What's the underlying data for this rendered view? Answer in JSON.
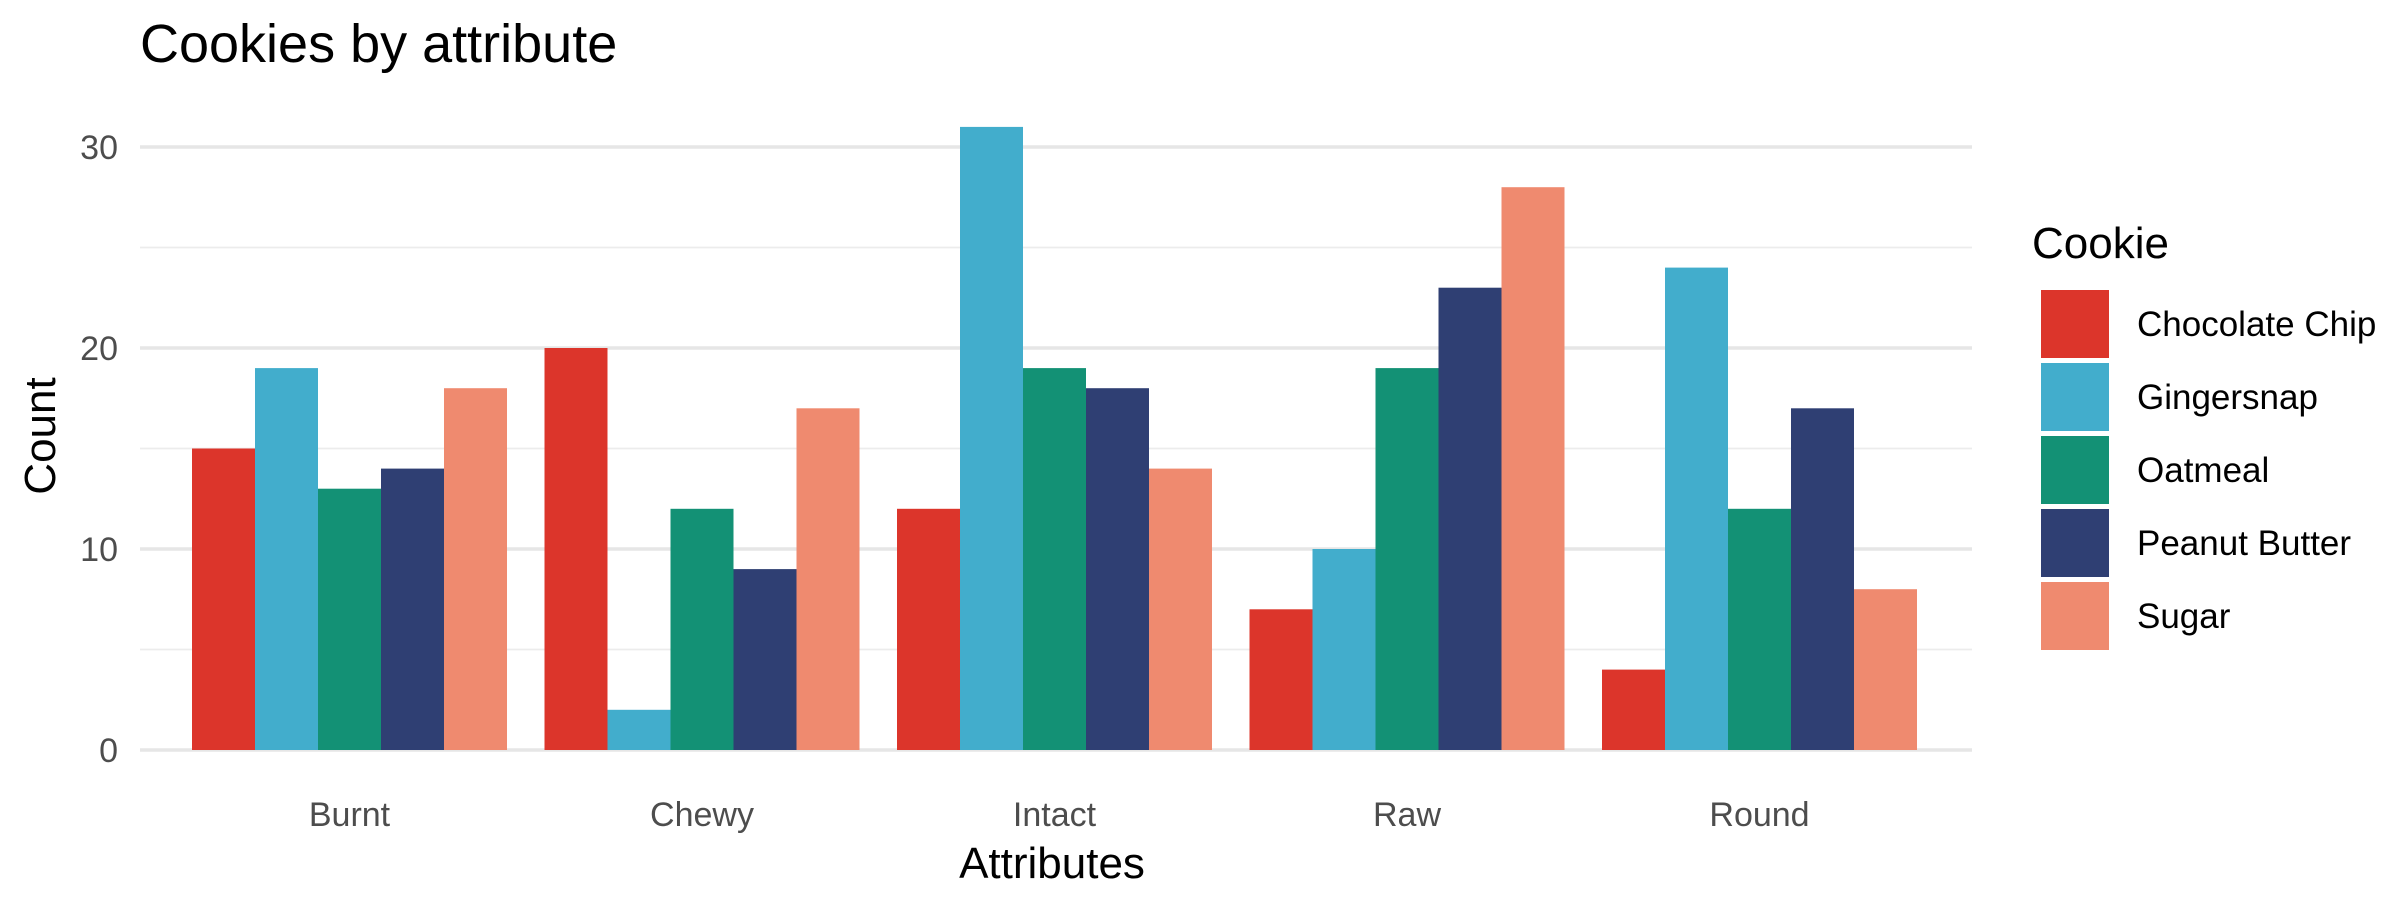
{
  "chart_data": {
    "type": "bar",
    "title": "Cookies by attribute",
    "xlabel": "Attributes",
    "ylabel": "Count",
    "categories": [
      "Burnt",
      "Chewy",
      "Intact",
      "Raw",
      "Round"
    ],
    "series": [
      {
        "name": "Chocolate Chip",
        "color": "#DC352B",
        "values": [
          15,
          20,
          12,
          7,
          4
        ]
      },
      {
        "name": "Gingersnap",
        "color": "#42ADCC",
        "values": [
          19,
          2,
          31,
          10,
          24
        ]
      },
      {
        "name": "Oatmeal",
        "color": "#139175",
        "values": [
          13,
          12,
          19,
          19,
          12
        ]
      },
      {
        "name": "Peanut Butter",
        "color": "#2F3F73",
        "values": [
          14,
          9,
          18,
          23,
          17
        ]
      },
      {
        "name": "Sugar",
        "color": "#EF8A6F",
        "values": [
          18,
          17,
          14,
          28,
          8
        ]
      }
    ],
    "yticks": [
      0,
      10,
      20,
      30
    ],
    "ylim": [
      0,
      31
    ],
    "grid": true,
    "legend": {
      "title": "Cookie",
      "position": "right"
    }
  }
}
